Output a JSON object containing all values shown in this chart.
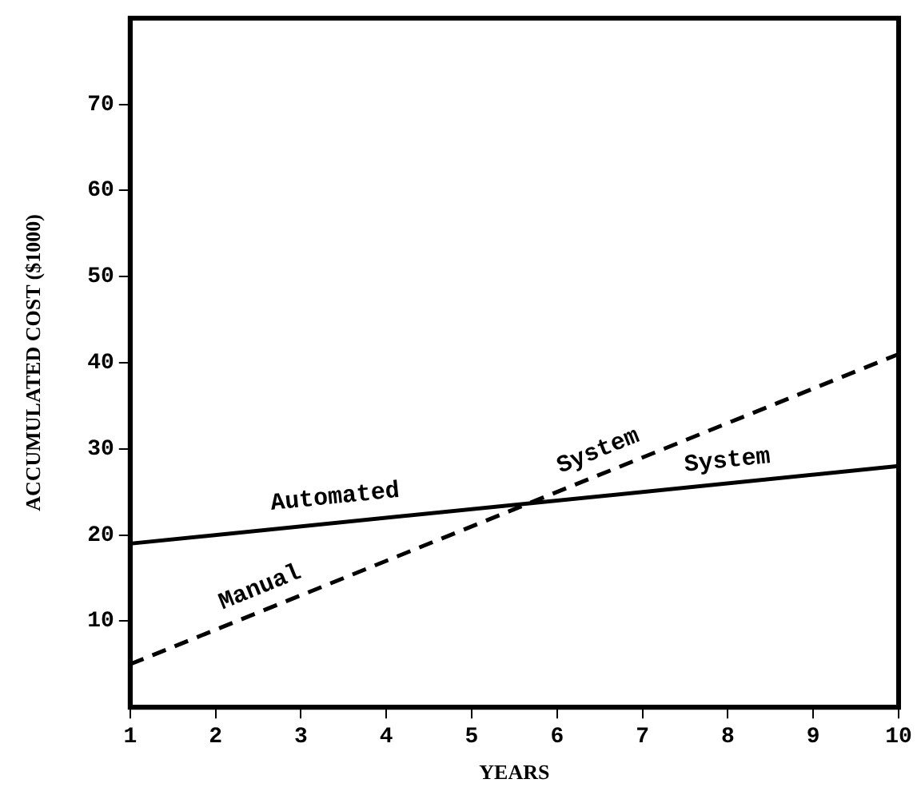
{
  "chart_data": {
    "type": "line",
    "xlabel": "YEARS",
    "ylabel": "ACCUMULATED COST ($1000)",
    "xlim": [
      1,
      10
    ],
    "xticks": [
      1,
      2,
      3,
      4,
      5,
      6,
      7,
      8,
      9,
      10
    ],
    "ylim": [
      0,
      80
    ],
    "yticks": [
      10,
      20,
      30,
      40,
      50,
      60,
      70
    ],
    "grid": false,
    "legend": false,
    "marker": "none",
    "series": [
      {
        "values": [
          19,
          28
        ],
        "color": "#000000",
        "line_style": "solid"
      },
      {
        "values": [
          5,
          41
        ],
        "color": "#000000",
        "line_style": "dashed"
      }
    ],
    "x": [
      1,
      10
    ],
    "annotations": [
      "Automated",
      "System",
      "Manual",
      "System"
    ]
  }
}
